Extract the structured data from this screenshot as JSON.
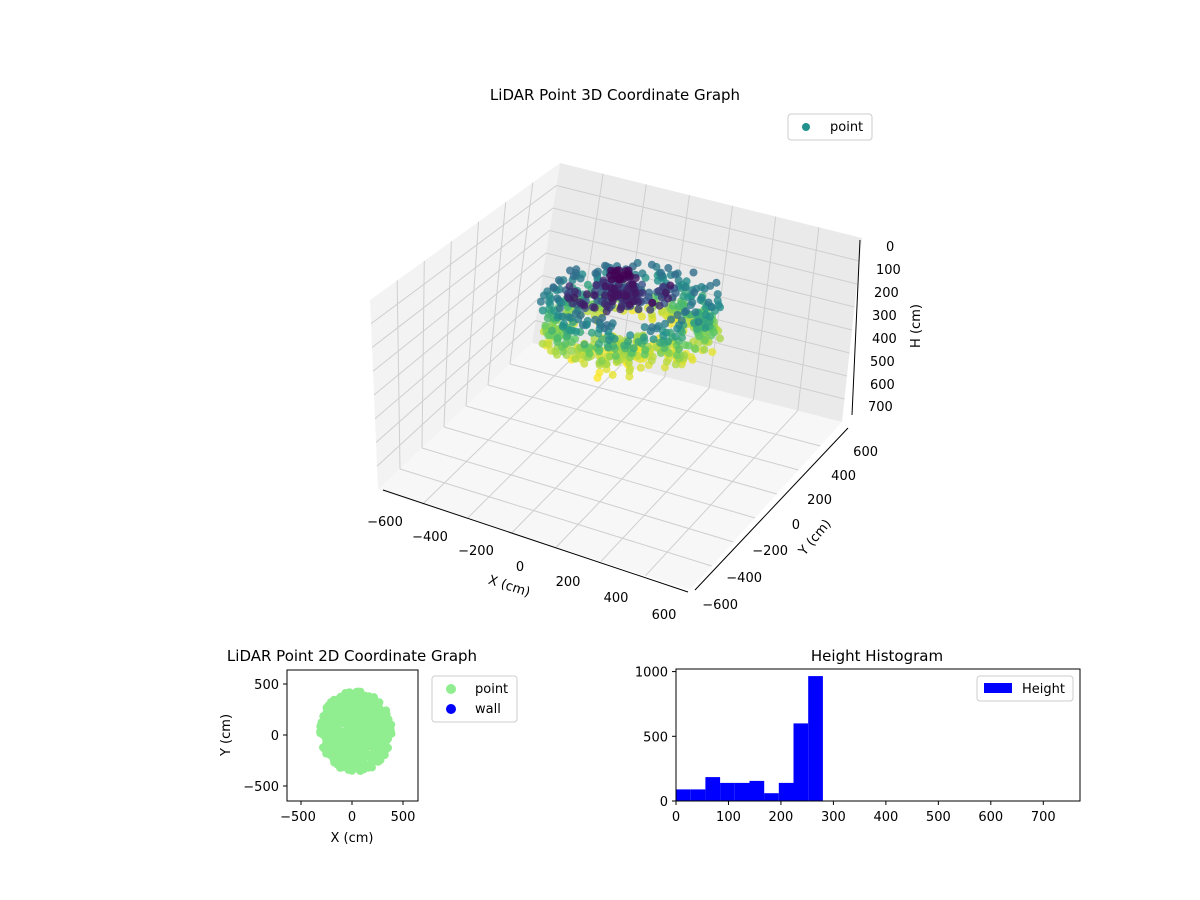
{
  "chart_data": [
    {
      "type": "scatter",
      "title": "LiDAR Point 3D Coordinate Graph",
      "xlabel": "X (cm)",
      "ylabel": "Y (cm)",
      "zlabel": "H (cm)",
      "xlim": [
        -650,
        650
      ],
      "ylim": [
        -650,
        650
      ],
      "zlim": [
        0,
        750
      ],
      "z_inverted": true,
      "x_ticks": [
        "−600",
        "−400",
        "−200",
        "0",
        "200",
        "400",
        "600"
      ],
      "y_ticks": [
        "−600",
        "−400",
        "−200",
        "0",
        "200",
        "400",
        "600"
      ],
      "z_ticks": [
        "0",
        "100",
        "200",
        "300",
        "400",
        "500",
        "600",
        "700"
      ],
      "legend": [
        "point"
      ],
      "legend_position": "top-right",
      "colormap": "viridis",
      "series_color": "#21918c"
    },
    {
      "type": "scatter",
      "title": "LiDAR Point 2D Coordinate Graph",
      "xlabel": "X (cm)",
      "ylabel": "Y (cm)",
      "xlim": [
        -650,
        650
      ],
      "ylim": [
        -650,
        650
      ],
      "x_ticks": [
        "−500",
        "0",
        "500"
      ],
      "y_ticks": [
        "500",
        "0",
        "−500"
      ],
      "legend_position": "outside-right",
      "series": [
        {
          "name": "point",
          "color": "#90ee90"
        },
        {
          "name": "wall",
          "color": "#0000ff"
        }
      ]
    },
    {
      "type": "bar",
      "title": "Height Histogram",
      "xlim": [
        0,
        770
      ],
      "ylim": [
        0,
        1020
      ],
      "x_ticks": [
        "0",
        "100",
        "200",
        "300",
        "400",
        "500",
        "600",
        "700"
      ],
      "y_ticks": [
        "0",
        "500",
        "1000"
      ],
      "legend": [
        "Height"
      ],
      "legend_position": "top-right",
      "color": "#0000ff",
      "bins": [
        {
          "start": 0,
          "end": 28,
          "value": 90
        },
        {
          "start": 28,
          "end": 56,
          "value": 90
        },
        {
          "start": 56,
          "end": 84,
          "value": 185
        },
        {
          "start": 84,
          "end": 112,
          "value": 140
        },
        {
          "start": 112,
          "end": 140,
          "value": 140
        },
        {
          "start": 140,
          "end": 168,
          "value": 155
        },
        {
          "start": 168,
          "end": 196,
          "value": 60
        },
        {
          "start": 196,
          "end": 224,
          "value": 140
        },
        {
          "start": 224,
          "end": 252,
          "value": 600
        },
        {
          "start": 252,
          "end": 280,
          "value": 965
        }
      ]
    }
  ]
}
